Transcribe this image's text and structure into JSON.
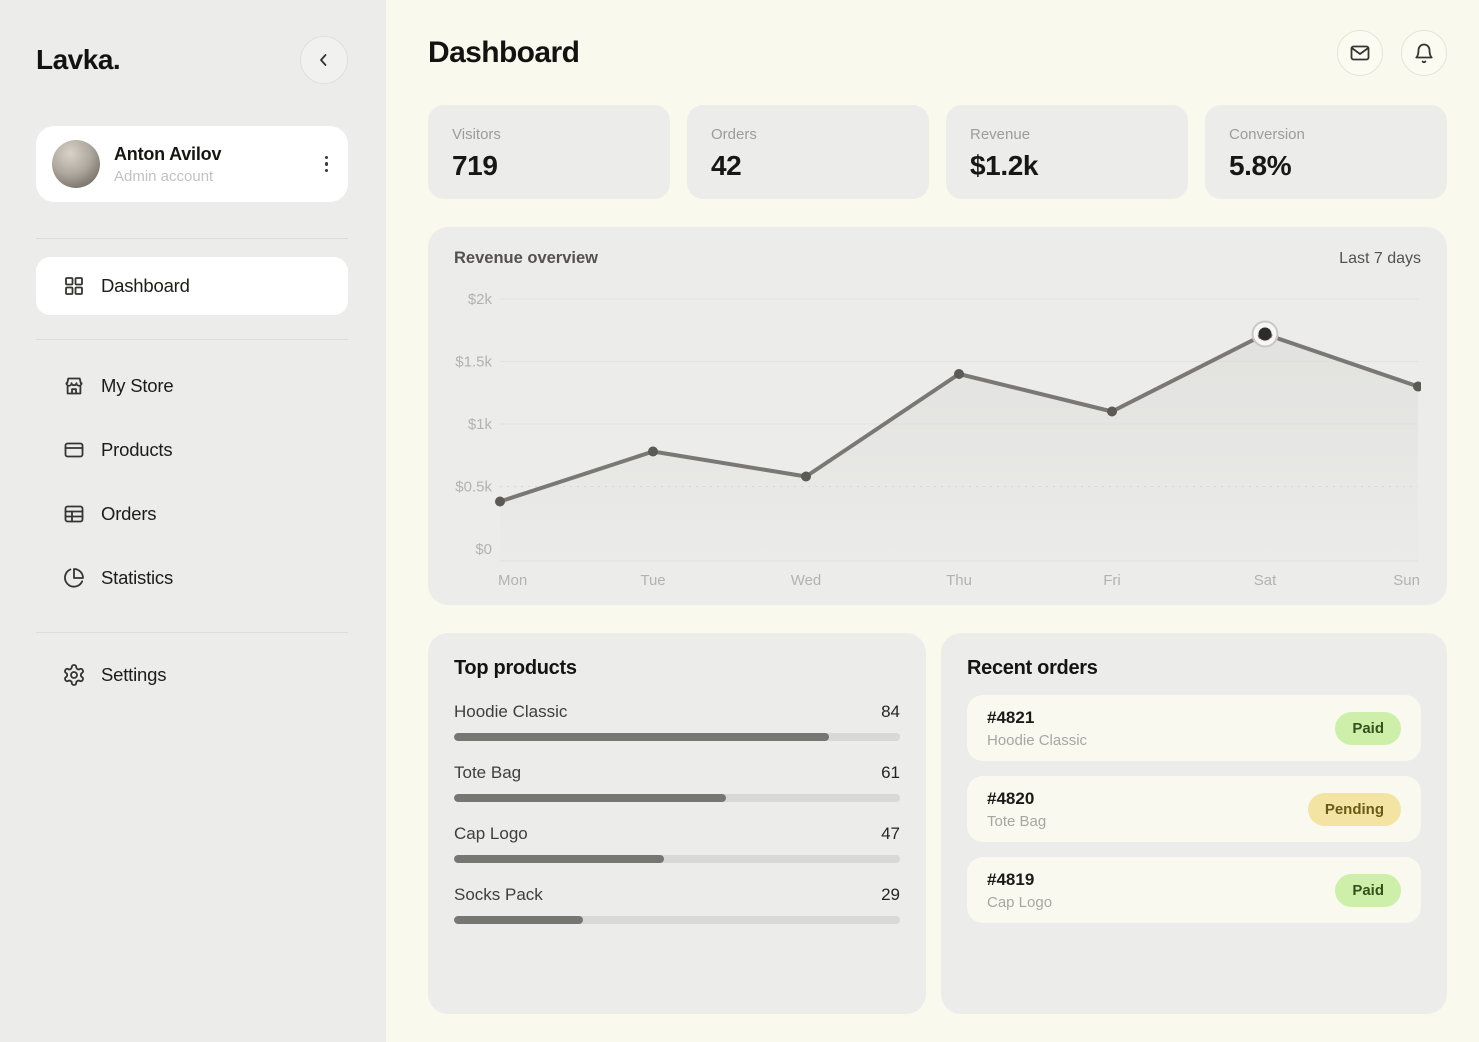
{
  "app": {
    "logo": "Lavka."
  },
  "sidebar": {
    "user": {
      "name": "Anton Avilov",
      "role": "Admin account"
    },
    "nav": {
      "dashboard": "Dashboard",
      "items": [
        {
          "label": "My Store",
          "icon": "store-icon"
        },
        {
          "label": "Products",
          "icon": "card-icon"
        },
        {
          "label": "Orders",
          "icon": "table-icon"
        },
        {
          "label": "Statistics",
          "icon": "pie-chart-icon"
        }
      ],
      "settings": "Settings"
    }
  },
  "header": {
    "title": "Dashboard",
    "icons": [
      "mail-icon",
      "bell-icon"
    ]
  },
  "stats": [
    {
      "label": "Visitors",
      "value": "719"
    },
    {
      "label": "Orders",
      "value": "42"
    },
    {
      "label": "Revenue",
      "value": "$1.2k"
    },
    {
      "label": "Conversion",
      "value": "5.8%"
    }
  ],
  "chart_data": {
    "type": "area",
    "title": "Revenue overview",
    "period_label": "Last 7 days",
    "x": [
      "Mon",
      "Tue",
      "Wed",
      "Thu",
      "Fri",
      "Sat",
      "Sun"
    ],
    "series": [
      {
        "name": "Revenue",
        "values": [
          380,
          780,
          580,
          1400,
          1100,
          1720,
          1300
        ]
      }
    ],
    "y_ticks": [
      {
        "value": 2000,
        "label": "$2k"
      },
      {
        "value": 1500,
        "label": "$1.5k"
      },
      {
        "value": 1000,
        "label": "$1k"
      },
      {
        "value": 500,
        "label": "$0.5k"
      },
      {
        "value": 0,
        "label": "$0"
      }
    ],
    "ylim": [
      0,
      2000
    ],
    "highlight_index": 5,
    "grid": true,
    "legend": "none"
  },
  "top_products": {
    "title": "Top products",
    "scale_max": 100,
    "items": [
      {
        "name": "Hoodie Classic",
        "value": 84
      },
      {
        "name": "Tote Bag",
        "value": 61
      },
      {
        "name": "Cap Logo",
        "value": 47
      },
      {
        "name": "Socks Pack",
        "value": 29
      }
    ]
  },
  "recent_orders": {
    "title": "Recent orders",
    "orders": [
      {
        "id": "#4821",
        "product": "Hoodie Classic",
        "status": "Paid"
      },
      {
        "id": "#4820",
        "product": "Tote Bag",
        "status": "Pending"
      },
      {
        "id": "#4819",
        "product": "Cap Logo",
        "status": "Paid"
      }
    ]
  },
  "colors": {
    "main_bg": "#FAF9EE",
    "panel_bg": "#ECECEA",
    "line": "#7A7875",
    "dot": "#5C5A56",
    "highlight_dot": "#2D2C2A",
    "highlight_ring": "#C9C8C5",
    "grid": "#E2E2E0",
    "grid_dashed": "#D7D7D5",
    "axis": "#DFDFDD",
    "tick_text": "#B2B2B0",
    "area_fill": "#D9D9D6",
    "paid_bg": "#CDEFA9",
    "paid_text": "#33521C",
    "pending_bg": "#F4E4A4",
    "pending_text": "#6B5A17"
  }
}
